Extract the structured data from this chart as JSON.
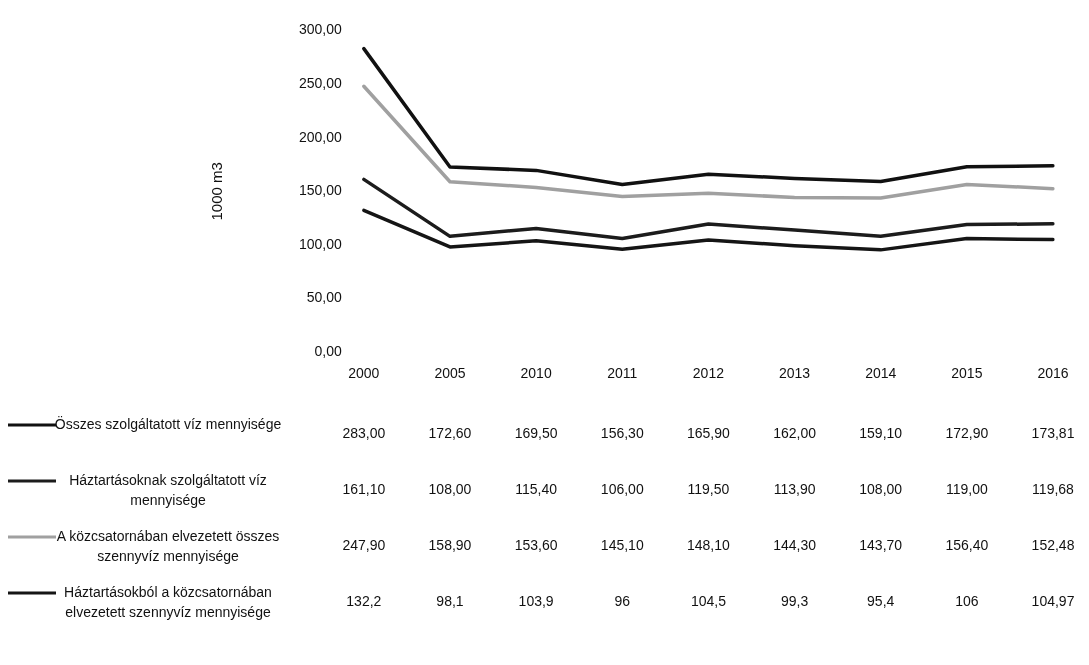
{
  "chart_data": {
    "type": "line",
    "ylabel": "1000 m3",
    "categories": [
      "2000",
      "2005",
      "2010",
      "2011",
      "2012",
      "2013",
      "2014",
      "2015",
      "2016"
    ],
    "series": [
      {
        "name": "Összes szolgáltatott víz mennyisége",
        "color": "#111111",
        "values": [
          283.0,
          172.6,
          169.5,
          156.3,
          165.9,
          162.0,
          159.1,
          172.9,
          173.81
        ],
        "value_labels": [
          "283,00",
          "172,60",
          "169,50",
          "156,30",
          "165,90",
          "162,00",
          "159,10",
          "172,90",
          "173,81"
        ]
      },
      {
        "name": "Háztartásoknak szolgáltatott víz mennyisége",
        "color": "#1c1c1c",
        "values": [
          161.1,
          108.0,
          115.4,
          106.0,
          119.5,
          113.9,
          108.0,
          119.0,
          119.68
        ],
        "value_labels": [
          "161,10",
          "108,00",
          "115,40",
          "106,00",
          "119,50",
          "113,90",
          "108,00",
          "119,00",
          "119,68"
        ]
      },
      {
        "name": "A közcsatornában elvezetett összes szennyvíz mennyisége",
        "color": "#a0a0a0",
        "values": [
          247.9,
          158.9,
          153.6,
          145.1,
          148.1,
          144.3,
          143.7,
          156.4,
          152.48
        ],
        "value_labels": [
          "247,90",
          "158,90",
          "153,60",
          "145,10",
          "148,10",
          "144,30",
          "143,70",
          "156,40",
          "152,48"
        ]
      },
      {
        "name": "Háztartásokból a közcsatornában elvezetett szennyvíz mennyisége",
        "color": "#151515",
        "values": [
          132.2,
          98.1,
          103.9,
          96,
          104.5,
          99.3,
          95.4,
          106,
          104.97
        ],
        "value_labels": [
          "132,2",
          "98,1",
          "103,9",
          "96",
          "104,5",
          "99,3",
          "95,4",
          "106",
          "104,97"
        ]
      }
    ],
    "ylim": [
      0,
      300
    ],
    "yticks": [
      {
        "value": 0,
        "label": "0,00"
      },
      {
        "value": 50,
        "label": "50,00"
      },
      {
        "value": 100,
        "label": "100,00"
      },
      {
        "value": 150,
        "label": "150,00"
      },
      {
        "value": 200,
        "label": "200,00"
      },
      {
        "value": 250,
        "label": "250,00"
      },
      {
        "value": 300,
        "label": "300,00"
      }
    ],
    "grid": false,
    "legend": "bottom left",
    "marker": "none",
    "line_style": "solid"
  }
}
